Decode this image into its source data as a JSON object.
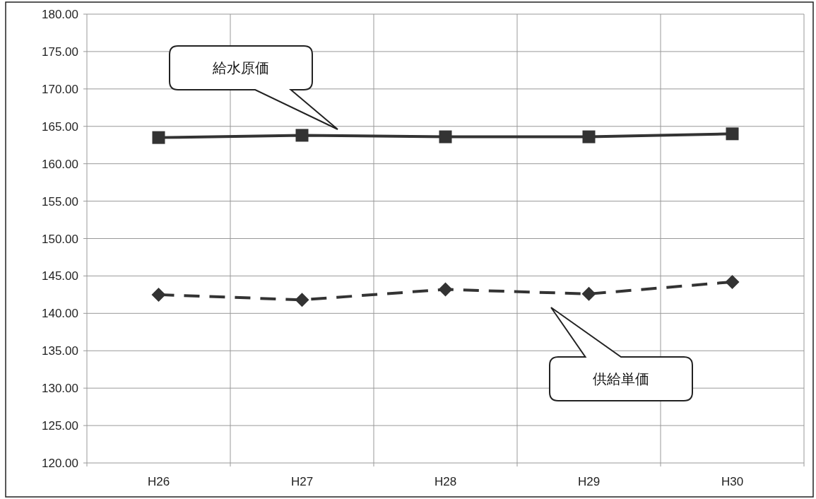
{
  "chart_data": {
    "type": "line",
    "categories": [
      "H26",
      "H27",
      "H28",
      "H29",
      "H30"
    ],
    "series": [
      {
        "color": "#333333",
        "marker": "square",
        "line_style": "solid",
        "values": [
          163.5,
          163.8,
          163.6,
          163.6,
          164.0
        ]
      },
      {
        "color": "#333333",
        "marker": "diamond",
        "line_style": "dashed",
        "values": [
          142.5,
          141.8,
          143.2,
          142.6,
          144.2
        ]
      }
    ],
    "ylim": [
      120,
      180
    ],
    "yticks": [
      {
        "value": 120,
        "label": "120.00"
      },
      {
        "value": 125,
        "label": "125.00"
      },
      {
        "value": 130,
        "label": "130.00"
      },
      {
        "value": 135,
        "label": "135.00"
      },
      {
        "value": 140,
        "label": "140.00"
      },
      {
        "value": 145,
        "label": "145.00"
      },
      {
        "value": 150,
        "label": "150.00"
      },
      {
        "value": 155,
        "label": "155.00"
      },
      {
        "value": 160,
        "label": "160.00"
      },
      {
        "value": 165,
        "label": "165.00"
      },
      {
        "value": 170,
        "label": "170.00"
      },
      {
        "value": 175,
        "label": "175.00"
      },
      {
        "value": 180,
        "label": "180.00"
      }
    ],
    "grid": true,
    "annotations": [
      "給水原価",
      "供給単価"
    ]
  }
}
